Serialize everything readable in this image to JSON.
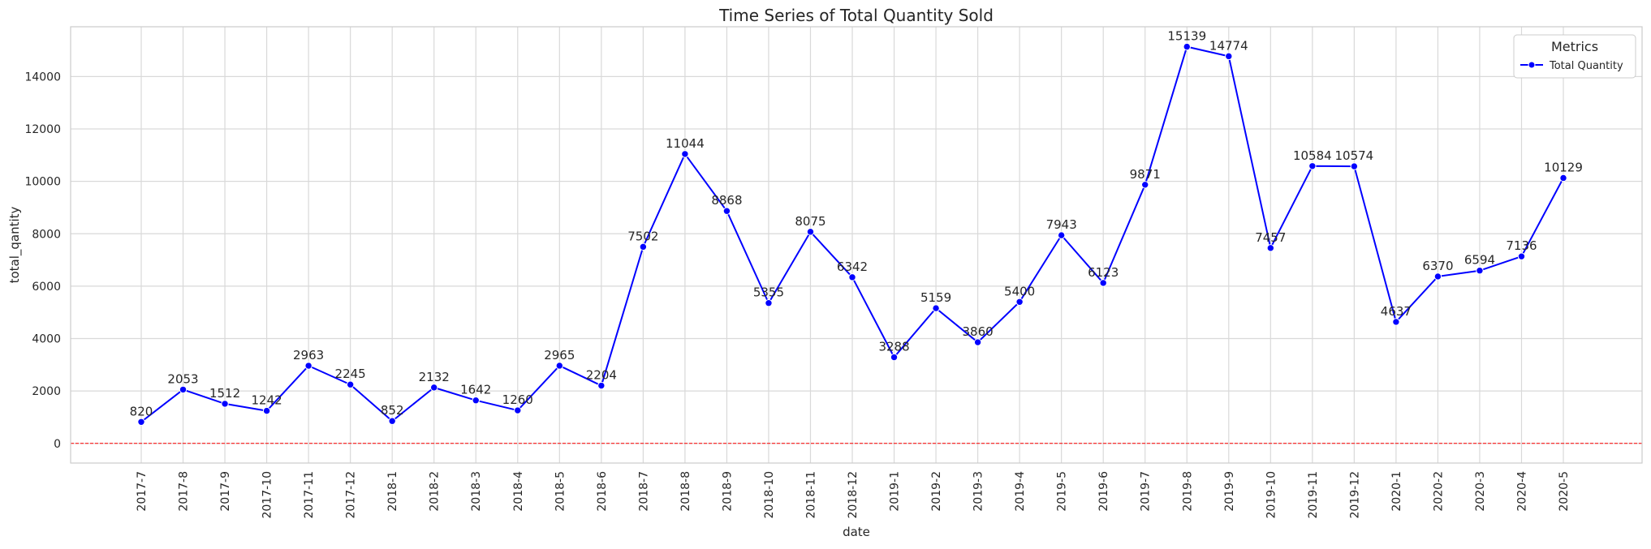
{
  "chart_data": {
    "type": "line",
    "title": "Time Series of Total Quantity Sold",
    "xlabel": "date",
    "ylabel": "total_qantity",
    "categories": [
      "2017-7",
      "2017-8",
      "2017-9",
      "2017-10",
      "2017-11",
      "2017-12",
      "2018-1",
      "2018-2",
      "2018-3",
      "2018-4",
      "2018-5",
      "2018-6",
      "2018-7",
      "2018-8",
      "2018-9",
      "2018-10",
      "2018-11",
      "2018-12",
      "2019-1",
      "2019-2",
      "2019-3",
      "2019-4",
      "2019-5",
      "2019-6",
      "2019-7",
      "2019-8",
      "2019-9",
      "2019-10",
      "2019-11",
      "2019-12",
      "2020-1",
      "2020-2",
      "2020-3",
      "2020-4",
      "2020-5"
    ],
    "series": [
      {
        "name": "Total Quantity",
        "color": "#0000ff",
        "values": [
          820,
          2053,
          1512,
          1242,
          2963,
          2245,
          852,
          2132,
          1642,
          1260,
          2965,
          2204,
          7502,
          11044,
          8868,
          5355,
          8075,
          6342,
          3288,
          5159,
          3860,
          5400,
          7943,
          6123,
          9871,
          15139,
          14774,
          7457,
          10584,
          10574,
          4637,
          6370,
          6594,
          7136,
          10129
        ]
      }
    ],
    "yticks": [
      0,
      2000,
      4000,
      6000,
      8000,
      10000,
      12000,
      14000
    ],
    "ylim": [
      -750,
      15900
    ],
    "reference_line": {
      "y": 0,
      "color": "#ff0000",
      "style": "dashed"
    },
    "grid": true,
    "legend": {
      "title": "Metrics",
      "position": "top-right"
    }
  }
}
